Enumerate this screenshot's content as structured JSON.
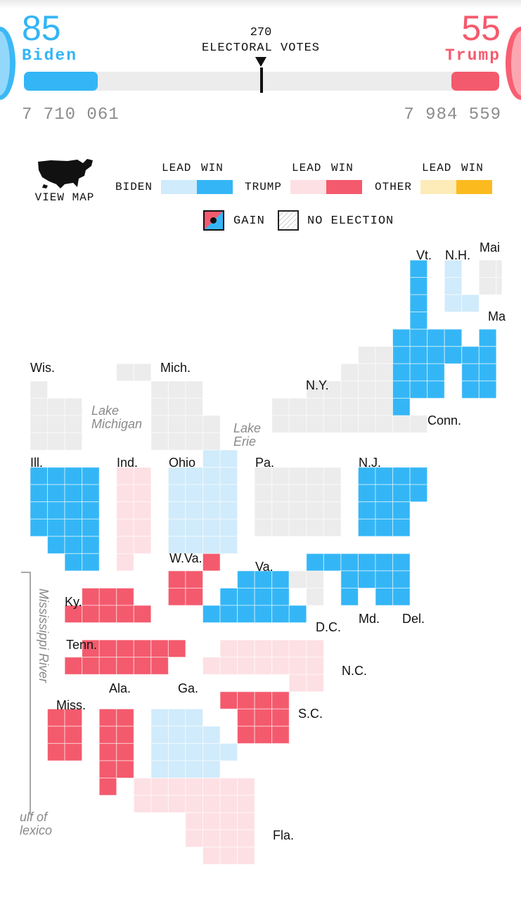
{
  "header": {
    "biden": {
      "votes": "85",
      "name": "Biden",
      "popular": "7 710 061",
      "share": 0.156
    },
    "trump": {
      "votes": "55",
      "name": "Trump",
      "popular": "7 984 559",
      "share": 0.1
    },
    "threshold": "270",
    "threshold_label": "ELECTORAL VOTES"
  },
  "legend": {
    "view_map": "VIEW MAP",
    "lead": "LEAD",
    "win": "WIN",
    "biden": "BIDEN",
    "trump": "TRUMP",
    "other": "OTHER",
    "gain": "GAIN",
    "no_election": "NO ELECTION",
    "colors": {
      "biden_lead": "#d0ebfb",
      "biden_win": "#34b6f6",
      "trump_lead": "#fde0e4",
      "trump_win": "#f45a6d",
      "other_lead": "#fdebb8",
      "other_win": "#fbbb1f",
      "no_election": "#ececec"
    }
  },
  "map": {
    "states": [
      {
        "label": "Vt.",
        "status": "biden_win"
      },
      {
        "label": "N.H.",
        "status": "biden_lead"
      },
      {
        "label": "Mai",
        "status": "no_election"
      },
      {
        "label": "Ma",
        "status": "biden_win"
      },
      {
        "label": "Wis.",
        "status": "no_election"
      },
      {
        "label": "Mich.",
        "status": "no_election"
      },
      {
        "label": "N.Y.",
        "status": "no_election"
      },
      {
        "label": "Conn.",
        "status": "biden_win"
      },
      {
        "label": "Ill.",
        "status": "biden_win"
      },
      {
        "label": "Ind.",
        "status": "trump_lead"
      },
      {
        "label": "Ohio",
        "status": "biden_lead"
      },
      {
        "label": "Pa.",
        "status": "no_election"
      },
      {
        "label": "N.J.",
        "status": "biden_win"
      },
      {
        "label": "W.Va.",
        "status": "trump_win"
      },
      {
        "label": "Va.",
        "status": "biden_win"
      },
      {
        "label": "Ky.",
        "status": "trump_win"
      },
      {
        "label": "D.C.",
        "status": "no_election"
      },
      {
        "label": "Md.",
        "status": "biden_win"
      },
      {
        "label": "Del.",
        "status": "biden_win"
      },
      {
        "label": "Tenn.",
        "status": "trump_win"
      },
      {
        "label": "N.C.",
        "status": "trump_lead"
      },
      {
        "label": "Miss.",
        "status": "trump_win"
      },
      {
        "label": "Ala.",
        "status": "trump_win"
      },
      {
        "label": "Ga.",
        "status": "biden_lead"
      },
      {
        "label": "S.C.",
        "status": "trump_win"
      },
      {
        "label": "Fla.",
        "status": "trump_lead"
      }
    ],
    "water": {
      "lake_michigan": [
        "Lake",
        "Michigan"
      ],
      "lake_erie": [
        "Lake",
        "Erie"
      ],
      "gulf": [
        "ulf of",
        "lexico"
      ],
      "river": "Mississippi River"
    }
  }
}
